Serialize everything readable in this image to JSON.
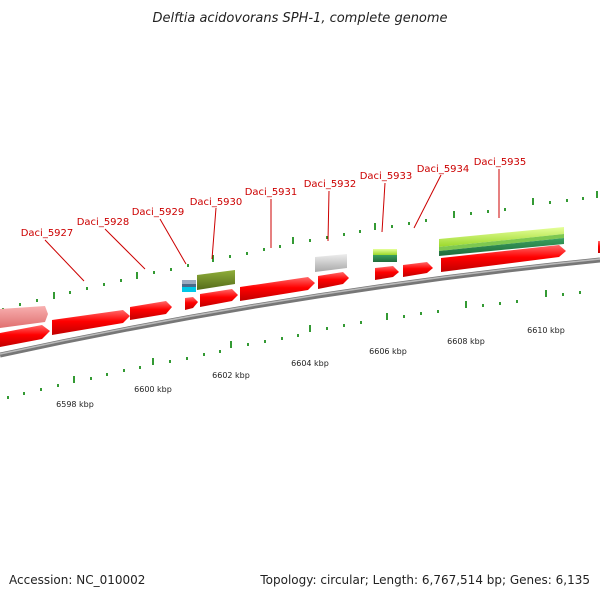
{
  "title": "Delftia acidovorans SPH-1, complete genome",
  "footer": {
    "accession_label": "Accession:",
    "accession": "NC_010002",
    "topology_text": "Topology: circular; Length: 6,767,514 bp; Genes: 6,135"
  },
  "gene_labels": [
    "Daci_5927",
    "Daci_5928",
    "Daci_5929",
    "Daci_5930",
    "Daci_5931",
    "Daci_5932",
    "Daci_5933",
    "Daci_5934",
    "Daci_5935"
  ],
  "kbp_labels": [
    "6598 kbp",
    "6600 kbp",
    "6602 kbp",
    "6604 kbp",
    "6606 kbp",
    "6608 kbp",
    "6610 kbp"
  ],
  "colors": {
    "forward_gene": "#ff0000",
    "pseudo_gene": "#f08080",
    "backbone": "#888888",
    "tick": "#008000",
    "label_line": "#cc0000",
    "grey_feature": "#c8c8c8",
    "olive_feature": "#6b8e23",
    "lime_feature": "#adff2f",
    "dark_green_feature": "#2e8b57"
  }
}
